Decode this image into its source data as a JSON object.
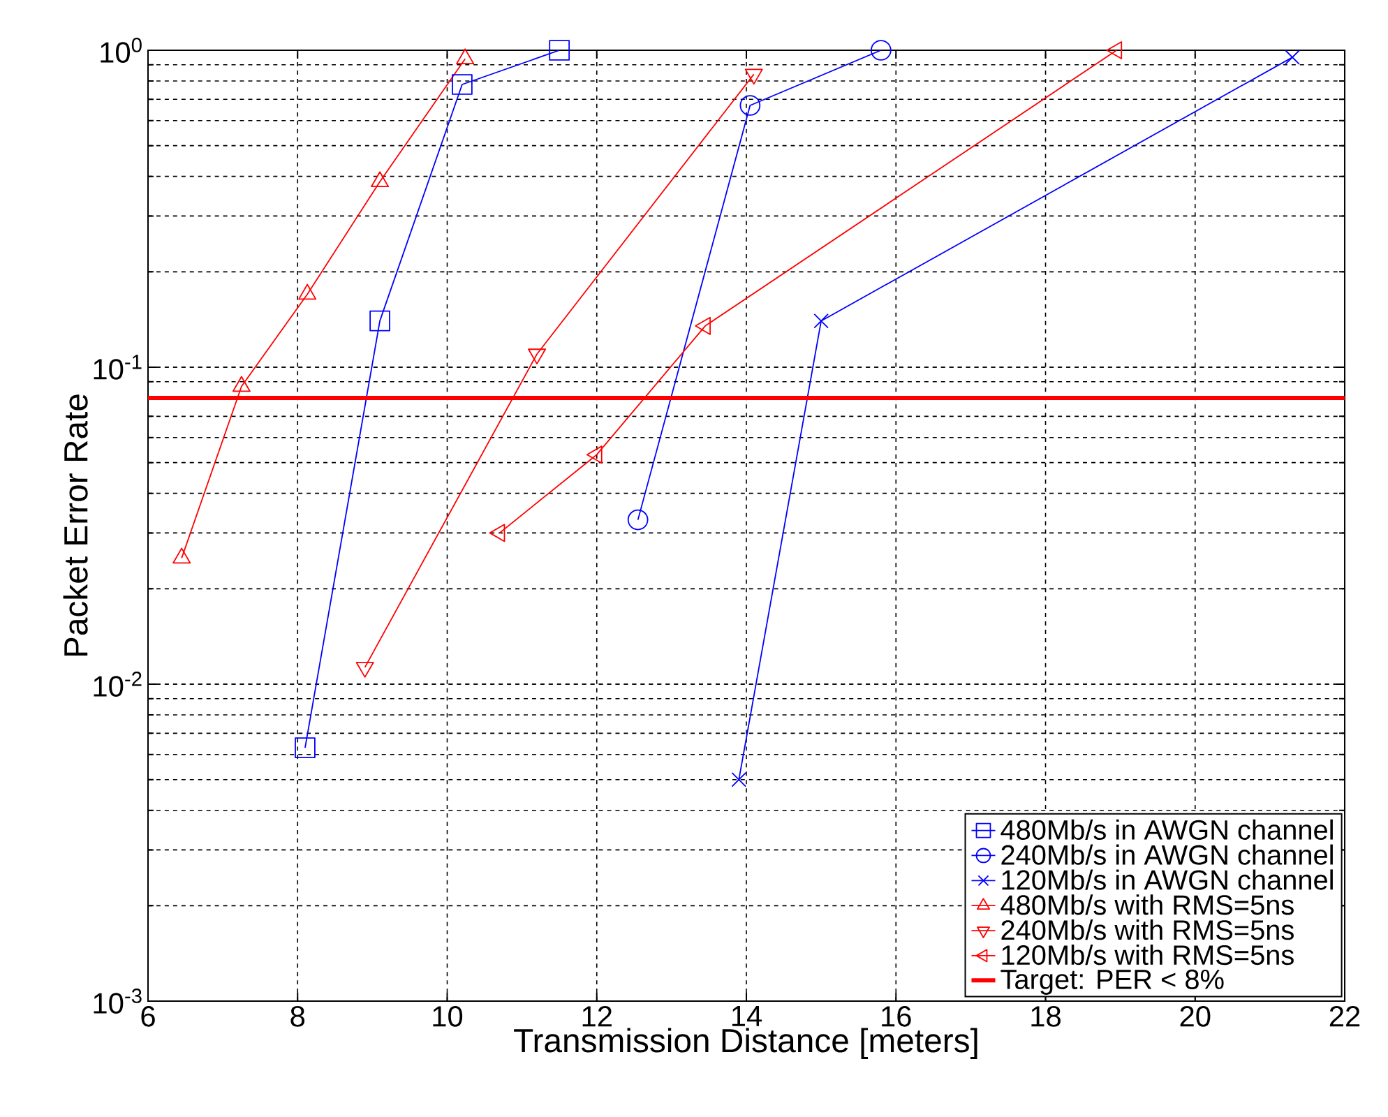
{
  "chart_data": {
    "type": "line",
    "xlabel": "Transmission  Distance  [meters]",
    "ylabel": "Packet  Error  Rate",
    "xlim": [
      6,
      22
    ],
    "ylim": [
      0.001,
      1
    ],
    "log": "y",
    "xticks": [
      6,
      8,
      10,
      12,
      14,
      16,
      18,
      20,
      22
    ],
    "yticks": [
      {
        "value": 0.001,
        "label": "10$^{-3}$"
      },
      {
        "value": 0.01,
        "label": "10$^{-2}$"
      },
      {
        "value": 0.1,
        "label": "10$^{-1}$"
      },
      {
        "value": 1,
        "label": "10$^{0}$"
      }
    ],
    "grid": true,
    "legend": "bottom right",
    "line_style": "solid",
    "series": [
      {
        "name": "480Mb/s in AWGN channel",
        "color": "#0000ff",
        "marker": "square",
        "x": [
          8.1,
          9.1,
          10.2,
          11.5
        ],
        "values": [
          0.0063,
          0.14,
          0.78,
          1.0
        ]
      },
      {
        "name": "240Mb/s in AWGN channel",
        "color": "#0000ff",
        "marker": "circle",
        "x": [
          12.55,
          14.05,
          15.8
        ],
        "values": [
          0.033,
          0.67,
          1.0
        ]
      },
      {
        "name": "120Mb/s in AWGN channel",
        "color": "#0000ff",
        "marker": "cross",
        "x": [
          13.9,
          15.0,
          21.3
        ],
        "values": [
          0.005,
          0.14,
          0.95
        ]
      },
      {
        "name": "480Mb/s with RMS=5ns",
        "color": "#ff0000",
        "marker": "triangle",
        "x": [
          6.45,
          7.25,
          8.13,
          9.1,
          10.24
        ],
        "values": [
          0.025,
          0.087,
          0.17,
          0.385,
          0.94
        ]
      },
      {
        "name": "240Mb/s with RMS=5ns",
        "color": "#ff0000",
        "marker": "triangle-down",
        "x": [
          8.9,
          11.2,
          14.1
        ],
        "values": [
          0.0113,
          0.11,
          0.84
        ]
      },
      {
        "name": "120Mb/s with RMS=5ns",
        "color": "#ff0000",
        "marker": "triangle-left",
        "x": [
          10.7,
          12.0,
          13.45,
          18.95
        ],
        "values": [
          0.03,
          0.053,
          0.135,
          1.0
        ]
      }
    ],
    "ref_lines": [
      {
        "axis": "y",
        "value": 0.08,
        "label": "Target: PER < 8%",
        "color": "#ff0000",
        "line_style": "solid"
      }
    ]
  }
}
